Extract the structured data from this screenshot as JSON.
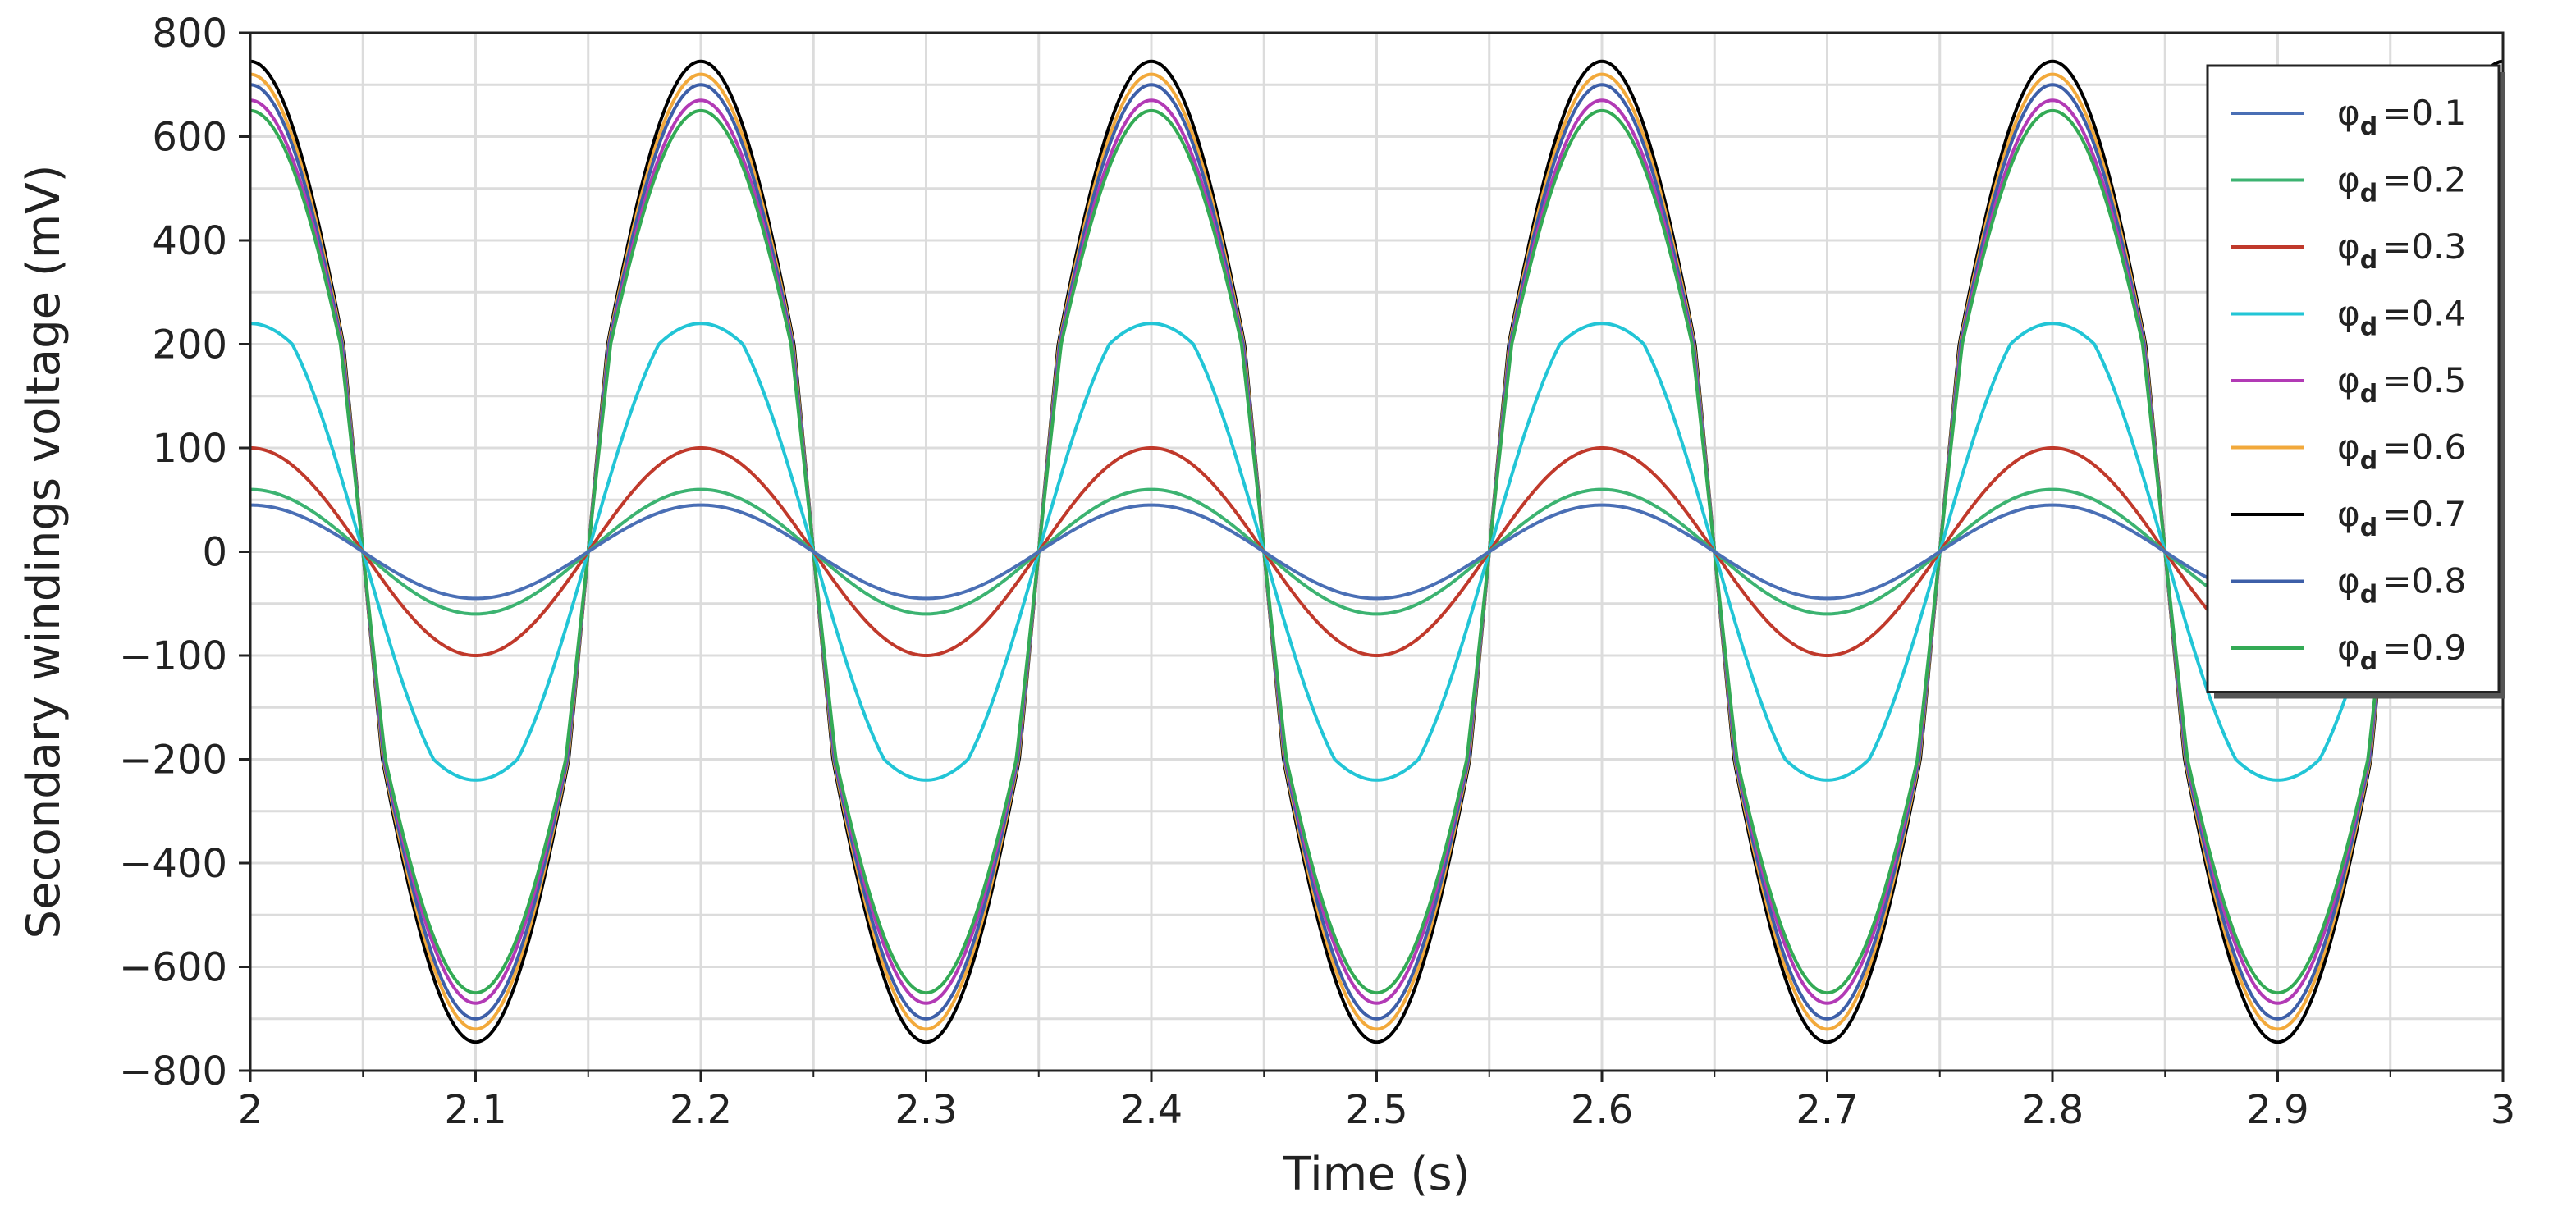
{
  "chart_data": {
    "type": "line",
    "title": "",
    "xlabel": "Time (s)",
    "ylabel": "Secondary windings voltage (mV)",
    "xlim": [
      2,
      3
    ],
    "x_ticks": [
      "2",
      "2.1",
      "2.2",
      "2.3",
      "2.4",
      "2.5",
      "2.6",
      "2.7",
      "2.8",
      "2.9",
      "3"
    ],
    "y_ticks": [
      {
        "label": "800",
        "value": 800
      },
      {
        "label": "600",
        "value": 600
      },
      {
        "label": "400",
        "value": 400
      },
      {
        "label": "200",
        "value": 200
      },
      {
        "label": "100",
        "value": 100
      },
      {
        "label": "0",
        "value": 0
      },
      {
        "label": "−100",
        "value": -100
      },
      {
        "label": "−200",
        "value": -200
      },
      {
        "label": "−400",
        "value": -400
      },
      {
        "label": "−600",
        "value": -600
      },
      {
        "label": "−800",
        "value": -800
      }
    ],
    "grid": true,
    "legend_position": "top-right",
    "waveform": {
      "shape": "sine",
      "frequency_hz": 5,
      "phase": "cosine peak at t = 2.0 s"
    },
    "series": [
      {
        "name": "φd = 0.1",
        "symbol": "φ",
        "subscript": "d",
        "value_text": "=0.1",
        "amplitude_mV": 45,
        "color": "#4a6fb5"
      },
      {
        "name": "φd = 0.2",
        "symbol": "φ",
        "subscript": "d",
        "value_text": "=0.2",
        "amplitude_mV": 60,
        "color": "#3cb371"
      },
      {
        "name": "φd = 0.3",
        "symbol": "φ",
        "subscript": "d",
        "value_text": "=0.3",
        "amplitude_mV": 100,
        "color": "#c0392b"
      },
      {
        "name": "φd = 0.4",
        "symbol": "φ",
        "subscript": "d",
        "value_text": "=0.4",
        "amplitude_mV": 240,
        "color": "#22c5d6"
      },
      {
        "name": "φd = 0.5",
        "symbol": "φ",
        "subscript": "d",
        "value_text": "=0.5",
        "amplitude_mV": 670,
        "color": "#b23ab5"
      },
      {
        "name": "φd = 0.6",
        "symbol": "φ",
        "subscript": "d",
        "value_text": "=0.6",
        "amplitude_mV": 720,
        "color": "#f2a93b"
      },
      {
        "name": "φd = 0.7",
        "symbol": "φ",
        "subscript": "d",
        "value_text": "=0.7",
        "amplitude_mV": 745,
        "color": "#000000"
      },
      {
        "name": "φd = 0.8",
        "symbol": "φ",
        "subscript": "d",
        "value_text": "=0.8",
        "amplitude_mV": 700,
        "color": "#3d5fa8"
      },
      {
        "name": "φd = 0.9",
        "symbol": "φ",
        "subscript": "d",
        "value_text": "=0.9",
        "amplitude_mV": 650,
        "color": "#33aa55"
      }
    ]
  }
}
